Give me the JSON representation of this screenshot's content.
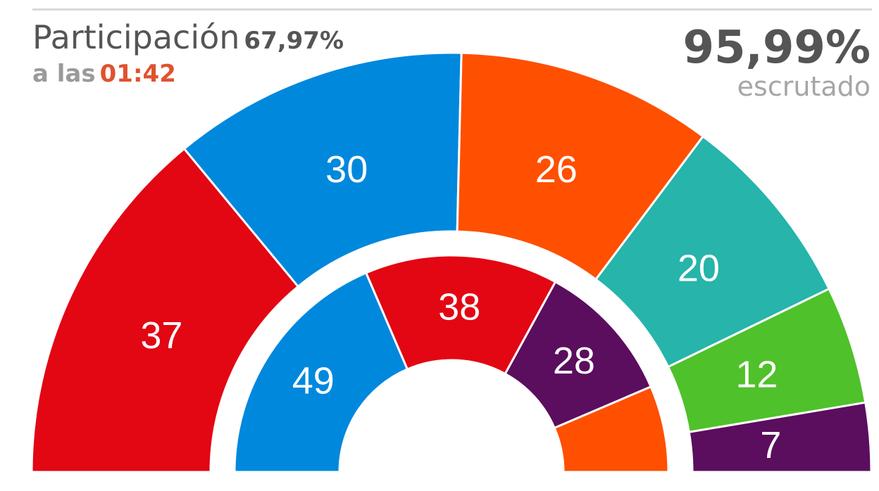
{
  "header": {
    "turnout_label": "Participación",
    "turnout_value": "67,97%",
    "time_prefix": "a las",
    "time_value": "01:42",
    "count_value": "95,99%",
    "count_label": "escrutado"
  },
  "chart_data": [
    {
      "type": "pie",
      "shape": "semicircle",
      "ring": "outer",
      "values": [
        37,
        30,
        26,
        20,
        12,
        7
      ],
      "labels": [
        "37",
        "30",
        "26",
        "20",
        "12",
        "7"
      ],
      "colors": [
        "#e30613",
        "#0088dd",
        "#fe5000",
        "#26b4ab",
        "#4fc12a",
        "#5b0d5e"
      ]
    },
    {
      "type": "pie",
      "shape": "semicircle",
      "ring": "inner",
      "values": [
        49,
        38,
        28,
        17
      ],
      "labels": [
        "49",
        "38",
        "28",
        ""
      ],
      "colors": [
        "#0088dd",
        "#e30613",
        "#5b0d5e",
        "#fe5000"
      ]
    }
  ]
}
